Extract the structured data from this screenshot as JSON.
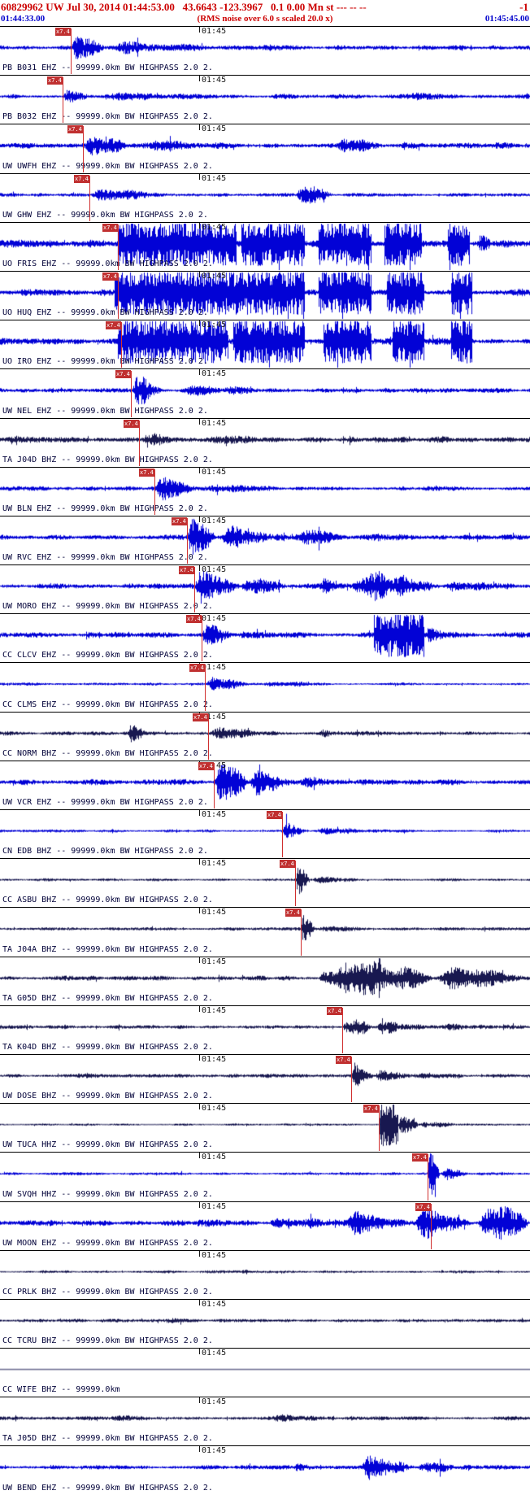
{
  "header": {
    "event_line": "60829962 UW Jul 30, 2014 01:44:53.00   43.6643 -123.3967   0.1 0.00 Mn st --- -- --",
    "event_line_right": "-1",
    "rms_note": "(RMS noise over 6.0 s scaled 20.0 x)",
    "window_start": "01:44:33.00",
    "window_end": "01:45:45.00"
  },
  "timeline": {
    "tick_label": "01:45",
    "tick_fraction": 0.375
  },
  "pick_flag_label": "x7.4",
  "colors": {
    "header_red": "#cc0000",
    "time_blue": "#0000cc",
    "trace_blue": "#0202d6",
    "trace_dark": "#181850",
    "pick_red": "#d03030",
    "pick_flag_bg": "#c03030",
    "pick_flag_text": "#ffffff",
    "label_dark": "#000038",
    "separator": "#000000",
    "background": "#ffffff"
  },
  "traces": [
    {
      "label": "PB B031 EHZ -- 99999.0km BW HIGHPASS 2.0 2.",
      "color": "blue",
      "pick": 0.134,
      "base": 0.09,
      "bursts": [
        [
          0.134,
          0.2,
          0.65
        ],
        [
          0.2,
          0.45,
          0.25
        ],
        [
          0.45,
          0.78,
          0.12
        ]
      ]
    },
    {
      "label": "PB B032 EHZ -- 99999.0km BW HIGHPASS 2.0 2.",
      "color": "blue",
      "pick": 0.118,
      "base": 0.08,
      "bursts": [
        [
          0.118,
          0.17,
          0.5
        ],
        [
          0.17,
          0.45,
          0.2
        ],
        [
          0.5,
          0.62,
          0.16
        ],
        [
          0.74,
          0.86,
          0.2
        ]
      ]
    },
    {
      "label": "UW UWFH EHZ -- 99999.0km BW HIGHPASS 2.0 2.",
      "color": "blue",
      "pick": 0.157,
      "base": 0.1,
      "bursts": [
        [
          0.157,
          0.25,
          0.45
        ],
        [
          0.25,
          0.55,
          0.18
        ],
        [
          0.63,
          0.75,
          0.28
        ]
      ]
    },
    {
      "label": "UW GHW EHZ -- 99999.0km BW HIGHPASS 2.0 2.",
      "color": "blue",
      "pick": 0.168,
      "base": 0.07,
      "bursts": [
        [
          0.168,
          0.3,
          0.3
        ],
        [
          0.555,
          0.63,
          0.42
        ]
      ]
    },
    {
      "label": "UO FRIS EHZ -- 99999.0km BW HIGHPASS 2.0 2.",
      "color": "blue",
      "pick": 0.222,
      "base": 0.13,
      "bursts": [
        [
          0.222,
          0.445,
          1.0
        ],
        [
          0.455,
          0.575,
          1.0
        ],
        [
          0.6,
          0.7,
          1.0
        ],
        [
          0.725,
          0.795,
          1.0
        ],
        [
          0.845,
          0.885,
          1.0
        ],
        [
          0.9,
          0.93,
          0.5
        ]
      ]
    },
    {
      "label": "UO HUQ EHZ -- 99999.0km BW HIGHPASS 2.0 2.",
      "color": "blue",
      "pick": 0.222,
      "base": 0.12,
      "bursts": [
        [
          0.215,
          0.575,
          1.0
        ],
        [
          0.6,
          0.7,
          1.0
        ],
        [
          0.73,
          0.8,
          1.0
        ],
        [
          0.85,
          0.89,
          1.0
        ]
      ]
    },
    {
      "label": "UO IRO EHZ -- 99999.0km BW HIGHPASS 2.0 2.",
      "color": "blue",
      "pick": 0.228,
      "base": 0.12,
      "bursts": [
        [
          0.222,
          0.43,
          1.0
        ],
        [
          0.44,
          0.575,
          1.0
        ],
        [
          0.61,
          0.7,
          1.0
        ],
        [
          0.74,
          0.8,
          1.0
        ],
        [
          0.85,
          0.89,
          1.0
        ]
      ]
    },
    {
      "label": "UW NEL EHZ -- 99999.0km BW HIGHPASS 2.0 2.",
      "color": "blue",
      "pick": 0.247,
      "base": 0.08,
      "bursts": [
        [
          0.247,
          0.32,
          0.55
        ],
        [
          0.32,
          0.58,
          0.2
        ]
      ]
    },
    {
      "label": "TA J04D BHZ -- 99999.0km BW HIGHPASS 2.0 2.",
      "color": "dark",
      "pick": 0.262,
      "base": 0.11,
      "bursts": [
        [
          0.262,
          0.35,
          0.3
        ],
        [
          0.35,
          0.68,
          0.16
        ]
      ]
    },
    {
      "label": "UW BLN EHZ -- 99999.0km BW HIGHPASS 2.0 2.",
      "color": "blue",
      "pick": 0.292,
      "base": 0.08,
      "bursts": [
        [
          0.292,
          0.37,
          0.45
        ],
        [
          0.37,
          0.62,
          0.15
        ]
      ]
    },
    {
      "label": "UW RVC EHZ -- 99999.0km BW HIGHPASS 2.0 2.",
      "color": "blue",
      "pick": 0.352,
      "base": 0.1,
      "bursts": [
        [
          0.352,
          0.41,
          0.75
        ],
        [
          0.41,
          0.55,
          0.55
        ],
        [
          0.55,
          0.68,
          0.3
        ],
        [
          0.68,
          0.88,
          0.15
        ]
      ]
    },
    {
      "label": "UW MORO EHZ -- 99999.0km BW HIGHPASS 2.0 2.",
      "color": "blue",
      "pick": 0.366,
      "base": 0.1,
      "bursts": [
        [
          0.366,
          0.45,
          0.7
        ],
        [
          0.45,
          0.56,
          0.35
        ],
        [
          0.6,
          0.67,
          0.3
        ],
        [
          0.66,
          0.83,
          0.6
        ],
        [
          0.83,
          0.96,
          0.25
        ]
      ]
    },
    {
      "label": "CC CLCV EHZ -- 99999.0km BW HIGHPASS 2.0 2.",
      "color": "blue",
      "pick": 0.38,
      "base": 0.1,
      "bursts": [
        [
          0.38,
          0.44,
          0.5
        ],
        [
          0.44,
          0.56,
          0.2
        ],
        [
          0.705,
          0.8,
          1.0
        ],
        [
          0.8,
          0.85,
          0.3
        ]
      ]
    },
    {
      "label": "CC CLMS EHZ -- 99999.0km BW HIGHPASS 2.0 2.",
      "color": "blue",
      "pick": 0.387,
      "base": 0.05,
      "bursts": [
        [
          0.387,
          0.47,
          0.28
        ],
        [
          0.47,
          0.72,
          0.1
        ]
      ]
    },
    {
      "label": "CC NORM BHZ -- 99999.0km BW HIGHPASS 2.0 2.",
      "color": "dark",
      "pick": 0.392,
      "base": 0.07,
      "bursts": [
        [
          0.24,
          0.28,
          0.3
        ],
        [
          0.392,
          0.52,
          0.25
        ],
        [
          0.6,
          0.65,
          0.15
        ]
      ]
    },
    {
      "label": "UW VCR EHZ -- 99999.0km BW HIGHPASS 2.0 2.",
      "color": "blue",
      "pick": 0.403,
      "base": 0.1,
      "bursts": [
        [
          0.403,
          0.47,
          0.8
        ],
        [
          0.47,
          0.56,
          0.45
        ],
        [
          0.56,
          0.66,
          0.2
        ],
        [
          0.66,
          0.85,
          0.1
        ]
      ]
    },
    {
      "label": "CN EDB BHZ -- 99999.0km BW HIGHPASS 2.0 2.",
      "color": "blue",
      "pick": 0.532,
      "base": 0.05,
      "bursts": [
        [
          0.532,
          0.58,
          0.35
        ],
        [
          0.58,
          0.78,
          0.14
        ]
      ]
    },
    {
      "label": "CC ASBU BHZ -- 99999.0km BW HIGHPASS 2.0 2.",
      "color": "dark",
      "pick": 0.557,
      "base": 0.05,
      "bursts": [
        [
          0.557,
          0.585,
          0.6
        ],
        [
          0.585,
          0.7,
          0.18
        ]
      ]
    },
    {
      "label": "TA J04A BHZ -- 99999.0km BW HIGHPASS 2.0 2.",
      "color": "dark",
      "pick": 0.567,
      "base": 0.06,
      "bursts": [
        [
          0.567,
          0.595,
          0.5
        ],
        [
          0.595,
          0.72,
          0.18
        ]
      ]
    },
    {
      "label": "TA G05D BHZ -- 99999.0km BW HIGHPASS 2.0 2.",
      "color": "dark",
      "pick": null,
      "base": 0.08,
      "bursts": [
        [
          0.6,
          0.66,
          0.45
        ],
        [
          0.625,
          0.82,
          0.85
        ],
        [
          0.82,
          1.0,
          0.45
        ]
      ]
    },
    {
      "label": "TA K04D BHZ -- 99999.0km BW HIGHPASS 2.0 2.",
      "color": "dark",
      "pick": 0.645,
      "base": 0.07,
      "bursts": [
        [
          0.645,
          0.7,
          0.55
        ],
        [
          0.7,
          0.82,
          0.25
        ],
        [
          0.82,
          1.0,
          0.12
        ]
      ]
    },
    {
      "label": "UW DOSE BHZ -- 99999.0km BW HIGHPASS 2.0 2.",
      "color": "dark",
      "pick": 0.663,
      "base": 0.07,
      "bursts": [
        [
          0.663,
          0.705,
          0.6
        ],
        [
          0.705,
          0.78,
          0.35
        ],
        [
          0.78,
          0.92,
          0.15
        ]
      ]
    },
    {
      "label": "UW TUCA HHZ -- 99999.0km BW HIGHPASS 2.0 2.",
      "color": "dark",
      "pick": 0.715,
      "base": 0.04,
      "bursts": [
        [
          0.715,
          0.75,
          1.0
        ],
        [
          0.75,
          0.79,
          0.4
        ],
        [
          0.79,
          0.87,
          0.15
        ]
      ]
    },
    {
      "label": "UW SVQH HHZ -- 99999.0km BW HIGHPASS 2.0 2.",
      "color": "blue",
      "pick": 0.806,
      "base": 0.05,
      "bursts": [
        [
          0.806,
          0.83,
          0.9
        ],
        [
          0.83,
          0.89,
          0.25
        ]
      ]
    },
    {
      "label": "UW MOON EHZ -- 99999.0km BW HIGHPASS 2.0 2.",
      "color": "blue",
      "pick": 0.813,
      "base": 0.1,
      "bursts": [
        [
          0.35,
          0.5,
          0.18
        ],
        [
          0.5,
          0.65,
          0.3
        ],
        [
          0.65,
          0.78,
          0.45
        ],
        [
          0.78,
          0.9,
          0.65
        ],
        [
          0.9,
          1.0,
          0.9
        ]
      ]
    },
    {
      "label": "CC PRLK BHZ -- 99999.0km BW HIGHPASS 2.0 2.",
      "color": "dark",
      "pick": null,
      "base": 0.05,
      "bursts": [
        [
          0.07,
          0.12,
          0.12
        ],
        [
          0.45,
          0.52,
          0.1
        ]
      ]
    },
    {
      "label": "CC TCRU BHZ -- 99999.0km BW HIGHPASS 2.0 2.",
      "color": "dark",
      "pick": null,
      "base": 0.06,
      "bursts": [
        [
          0.3,
          0.42,
          0.1
        ],
        [
          0.62,
          0.72,
          0.1
        ]
      ]
    },
    {
      "label": "CC WIFE BHZ -- 99999.0km",
      "color": "dark",
      "pick": null,
      "base": 0.012,
      "bursts": []
    },
    {
      "label": "TA J05D BHZ -- 99999.0km BW HIGHPASS 2.0 2.",
      "color": "dark",
      "pick": null,
      "base": 0.07,
      "bursts": [
        [
          0.2,
          0.3,
          0.12
        ],
        [
          0.5,
          0.68,
          0.14
        ]
      ]
    },
    {
      "label": "UW BEND EHZ -- 99999.0km BW HIGHPASS 2.0 2.",
      "color": "blue",
      "pick": null,
      "base": 0.08,
      "bursts": [
        [
          0.55,
          0.62,
          0.2
        ],
        [
          0.68,
          0.78,
          0.45
        ],
        [
          0.78,
          0.92,
          0.2
        ]
      ]
    }
  ]
}
